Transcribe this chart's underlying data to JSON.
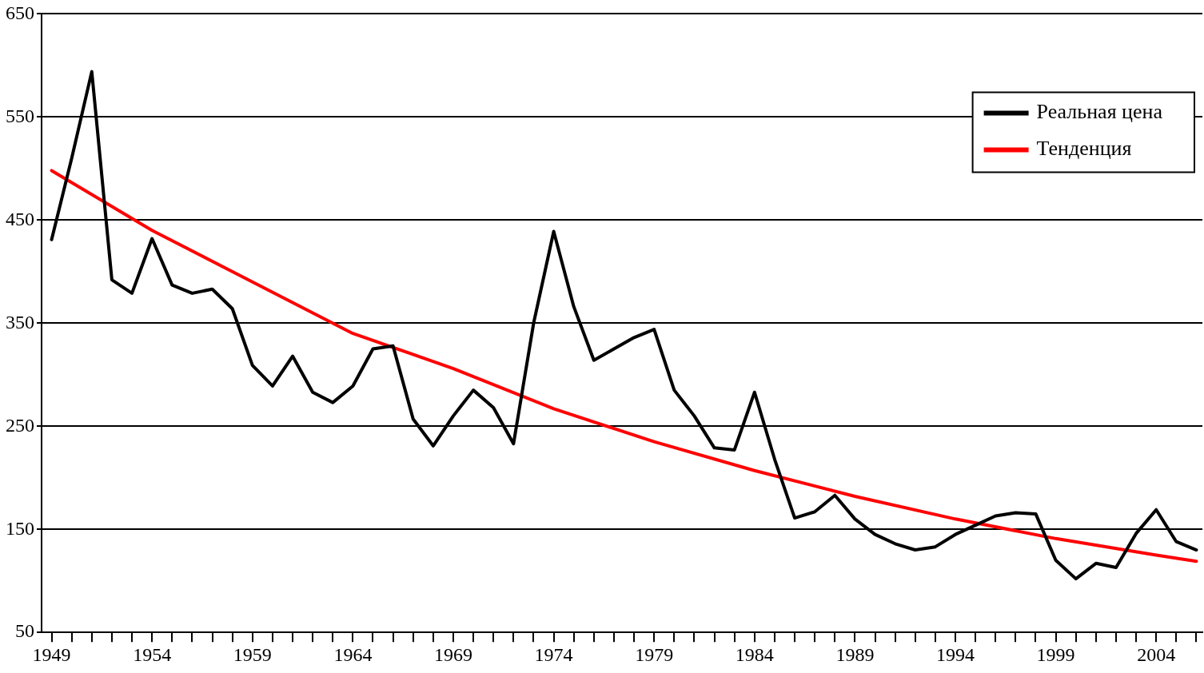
{
  "chart_data": {
    "type": "line",
    "xlim": [
      1948.5,
      2006.3
    ],
    "ylim": [
      50,
      650
    ],
    "yticks": [
      50,
      150,
      250,
      350,
      450,
      550,
      650
    ],
    "xticks": [
      1949,
      {
        "value": 1950,
        "label": null
      },
      {
        "value": 1951,
        "label": null
      },
      {
        "value": 1952,
        "label": null
      },
      {
        "value": 1953,
        "label": null
      },
      1954,
      {
        "value": 1955,
        "label": null
      },
      {
        "value": 1956,
        "label": null
      },
      {
        "value": 1957,
        "label": null
      },
      {
        "value": 1958,
        "label": null
      },
      1959,
      {
        "value": 1960,
        "label": null
      },
      {
        "value": 1961,
        "label": null
      },
      {
        "value": 1962,
        "label": null
      },
      {
        "value": 1963,
        "label": null
      },
      1964,
      {
        "value": 1965,
        "label": null
      },
      {
        "value": 1966,
        "label": null
      },
      {
        "value": 1967,
        "label": null
      },
      {
        "value": 1968,
        "label": null
      },
      1969,
      {
        "value": 1970,
        "label": null
      },
      {
        "value": 1971,
        "label": null
      },
      {
        "value": 1972,
        "label": null
      },
      {
        "value": 1973,
        "label": null
      },
      1974,
      {
        "value": 1975,
        "label": null
      },
      {
        "value": 1976,
        "label": null
      },
      {
        "value": 1977,
        "label": null
      },
      {
        "value": 1978,
        "label": null
      },
      1979,
      {
        "value": 1980,
        "label": null
      },
      {
        "value": 1981,
        "label": null
      },
      {
        "value": 1982,
        "label": null
      },
      {
        "value": 1983,
        "label": null
      },
      1984,
      {
        "value": 1985,
        "label": null
      },
      {
        "value": 1986,
        "label": null
      },
      {
        "value": 1987,
        "label": null
      },
      {
        "value": 1988,
        "label": null
      },
      1989,
      {
        "value": 1990,
        "label": null
      },
      {
        "value": 1991,
        "label": null
      },
      {
        "value": 1992,
        "label": null
      },
      {
        "value": 1993,
        "label": null
      },
      1994,
      {
        "value": 1995,
        "label": null
      },
      {
        "value": 1996,
        "label": null
      },
      {
        "value": 1997,
        "label": null
      },
      {
        "value": 1998,
        "label": null
      },
      1999,
      {
        "value": 2000,
        "label": null
      },
      {
        "value": 2001,
        "label": null
      },
      {
        "value": 2002,
        "label": null
      },
      {
        "value": 2003,
        "label": null
      },
      2004,
      {
        "value": 2005,
        "label": null
      },
      {
        "value": 2006,
        "label": null
      }
    ],
    "grid": "y",
    "legend": "top right",
    "marker": "none",
    "line_style": "solid",
    "series": [
      {
        "name": "Реальная цена",
        "color": "#000000",
        "x": [
          1949,
          1950,
          1951,
          1952,
          1953,
          1954,
          1955,
          1956,
          1957,
          1958,
          1959,
          1960,
          1961,
          1962,
          1963,
          1964,
          1965,
          1966,
          1967,
          1968,
          1969,
          1970,
          1971,
          1972,
          1973,
          1974,
          1975,
          1976,
          1977,
          1978,
          1979,
          1980,
          1981,
          1982,
          1983,
          1984,
          1985,
          1986,
          1987,
          1988,
          1989,
          1990,
          1991,
          1992,
          1993,
          1994,
          1995,
          1996,
          1997,
          1998,
          1999,
          2000,
          2001,
          2002,
          2003,
          2004,
          2005,
          2006
        ],
        "values": [
          431,
          510,
          594,
          392,
          379,
          432,
          387,
          379,
          383,
          364,
          309,
          289,
          318,
          283,
          273,
          289,
          325,
          328,
          257,
          231,
          260,
          285,
          268,
          233,
          350,
          439,
          366,
          314,
          325,
          336,
          344,
          285,
          260,
          229,
          227,
          283,
          218,
          161,
          167,
          183,
          160,
          145,
          136,
          130,
          133,
          145,
          154,
          163,
          166,
          165,
          120,
          102,
          117,
          113,
          146,
          169,
          138,
          130
        ]
      },
      {
        "name": "Тенденция",
        "color": "#ff0000",
        "x": [
          1949,
          1954,
          1959,
          1964,
          1969,
          1974,
          1979,
          1984,
          1989,
          1994,
          1999,
          2004,
          2006
        ],
        "values": [
          498,
          440,
          390,
          340,
          306,
          267,
          235,
          207,
          182,
          160,
          141,
          125,
          119
        ]
      }
    ]
  }
}
